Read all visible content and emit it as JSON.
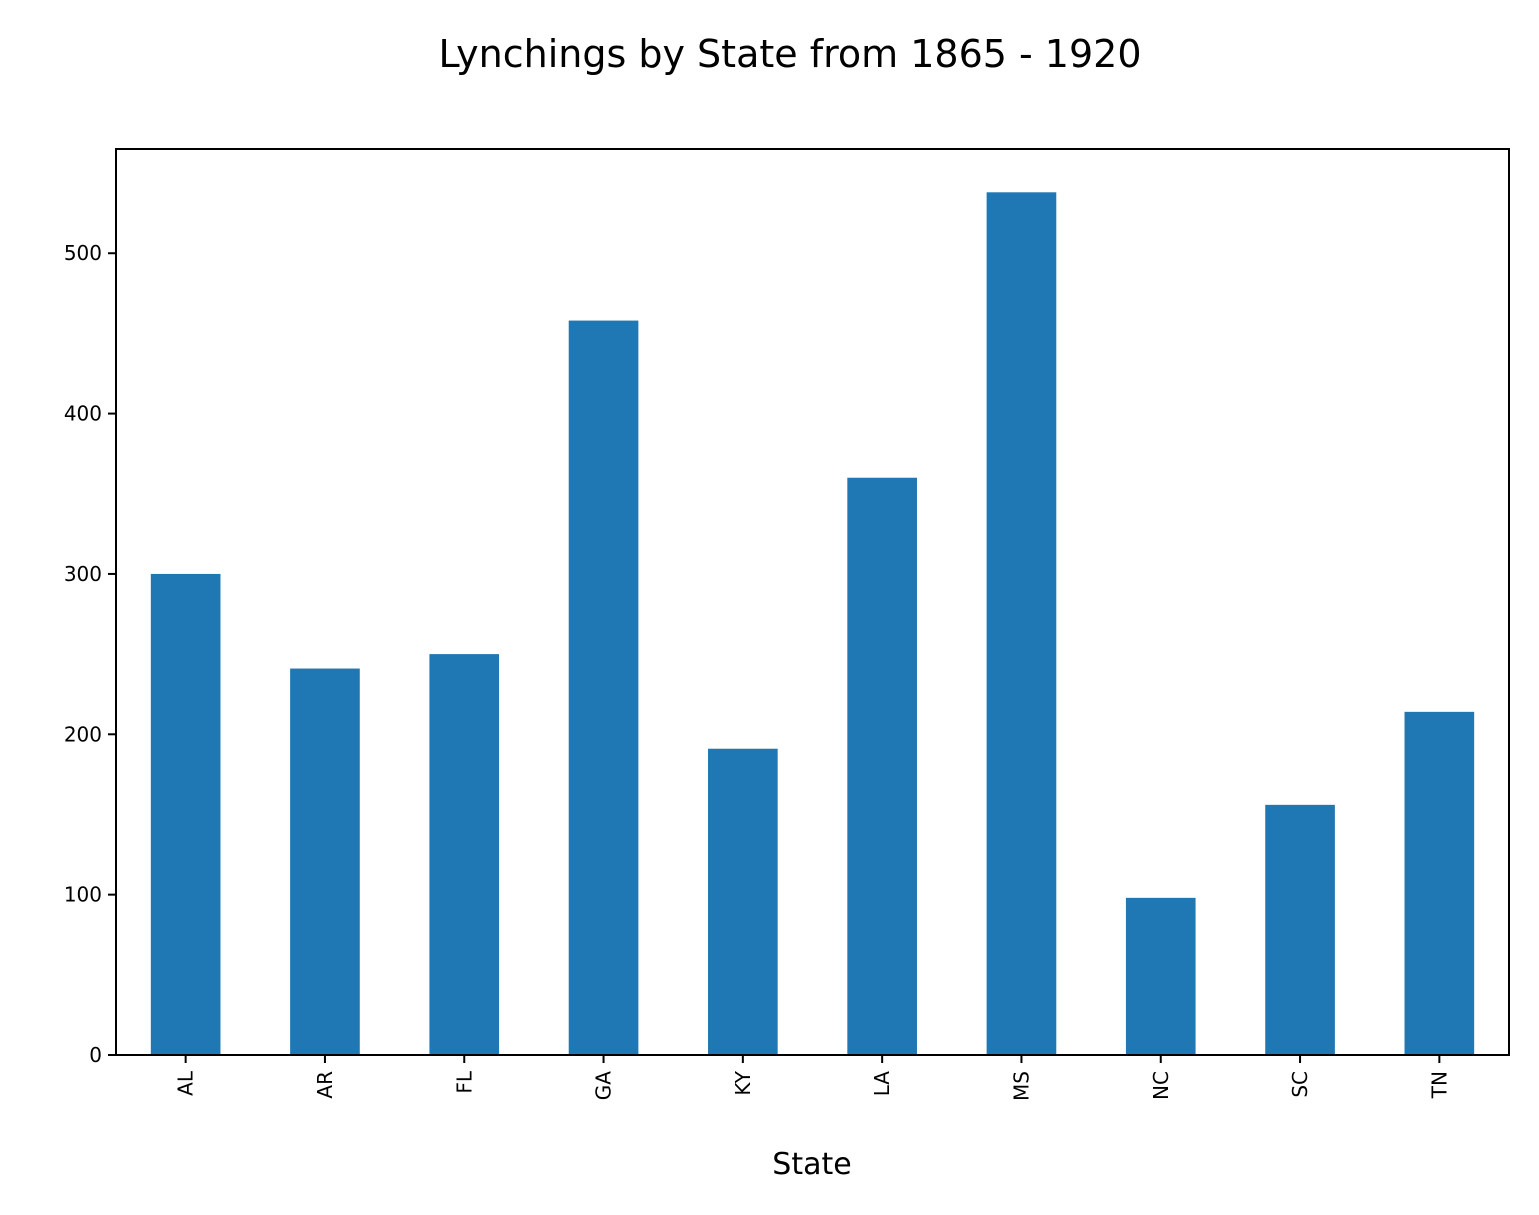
{
  "chart_data": {
    "type": "bar",
    "title": "Lynchings by State from 1865 - 1920",
    "xlabel": "State",
    "ylabel": "",
    "categories": [
      "AL",
      "AR",
      "FL",
      "GA",
      "KY",
      "LA",
      "MS",
      "NC",
      "SC",
      "TN"
    ],
    "values": [
      300,
      241,
      250,
      458,
      191,
      360,
      538,
      98,
      156,
      214
    ],
    "ylim": [
      0,
      565
    ],
    "yticks": [
      0,
      100,
      200,
      300,
      400,
      500
    ],
    "grid": false,
    "bar_color": "#1f77b4"
  }
}
